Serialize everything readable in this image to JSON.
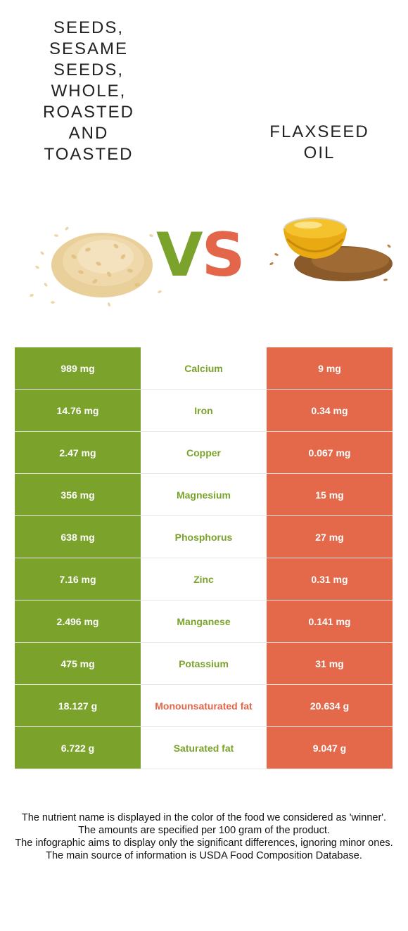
{
  "food_left": {
    "name_lines": [
      "Seeds,",
      "sesame",
      "seeds,",
      "whole,",
      "roasted",
      "and",
      "toasted"
    ],
    "color": "#7ba32b"
  },
  "food_right": {
    "name_lines": [
      "Flaxseed",
      "oil"
    ],
    "color": "#e4664a"
  },
  "vs": {
    "v": "V",
    "s": "S"
  },
  "rows": [
    {
      "left": "989 mg",
      "nutrient": "Calcium",
      "right": "9 mg",
      "winner": "left"
    },
    {
      "left": "14.76 mg",
      "nutrient": "Iron",
      "right": "0.34 mg",
      "winner": "left"
    },
    {
      "left": "2.47 mg",
      "nutrient": "Copper",
      "right": "0.067 mg",
      "winner": "left"
    },
    {
      "left": "356 mg",
      "nutrient": "Magnesium",
      "right": "15 mg",
      "winner": "left"
    },
    {
      "left": "638 mg",
      "nutrient": "Phosphorus",
      "right": "27 mg",
      "winner": "left"
    },
    {
      "left": "7.16 mg",
      "nutrient": "Zinc",
      "right": "0.31 mg",
      "winner": "left"
    },
    {
      "left": "2.496 mg",
      "nutrient": "Manganese",
      "right": "0.141 mg",
      "winner": "left"
    },
    {
      "left": "475 mg",
      "nutrient": "Potassium",
      "right": "31 mg",
      "winner": "left"
    },
    {
      "left": "18.127 g",
      "nutrient": "Monounsaturated fat",
      "right": "20.634 g",
      "winner": "right"
    },
    {
      "left": "6.722 g",
      "nutrient": "Saturated fat",
      "right": "9.047 g",
      "winner": "left"
    }
  ],
  "notes": [
    "The nutrient name is displayed in the color of the food we considered as 'winner'.",
    "The amounts are specified per 100 gram of the product.",
    "The infographic aims to display only the significant differences, ignoring minor ones.",
    "The main source of information is USDA Food Composition Database."
  ]
}
